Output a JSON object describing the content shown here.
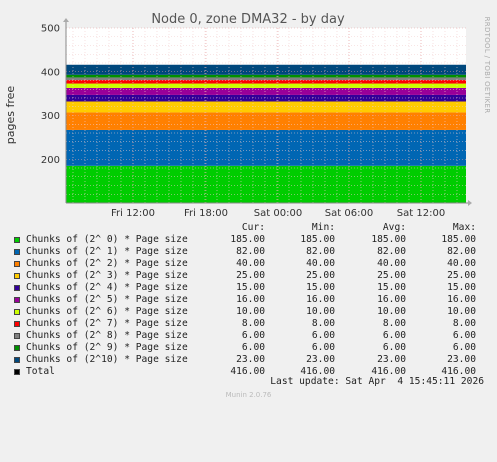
{
  "chart_data": {
    "type": "area",
    "stacked": true,
    "title": "Node 0, zone DMA32 - by day",
    "ylabel": "pages free",
    "ylim": [
      100,
      500
    ],
    "yticks": [
      200,
      300,
      400,
      500
    ],
    "xticks": [
      "Fri 12:00",
      "Fri 18:00",
      "Sat 00:00",
      "Sat 06:00",
      "Sat 12:00"
    ],
    "grid": true,
    "columns": [
      "Cur:",
      "Min:",
      "Avg:",
      "Max:"
    ],
    "series": [
      {
        "name": "Chunks of (2^ 0) * Page size",
        "color": "#00cc00",
        "cur": "185.00",
        "min": "185.00",
        "avg": "185.00",
        "max": "185.00",
        "value": 185
      },
      {
        "name": "Chunks of (2^ 1) * Page size",
        "color": "#0066b3",
        "cur": "82.00",
        "min": "82.00",
        "avg": "82.00",
        "max": "82.00",
        "value": 82
      },
      {
        "name": "Chunks of (2^ 2) * Page size",
        "color": "#ff8000",
        "cur": "40.00",
        "min": "40.00",
        "avg": "40.00",
        "max": "40.00",
        "value": 40
      },
      {
        "name": "Chunks of (2^ 3) * Page size",
        "color": "#ffcc00",
        "cur": "25.00",
        "min": "25.00",
        "avg": "25.00",
        "max": "25.00",
        "value": 25
      },
      {
        "name": "Chunks of (2^ 4) * Page size",
        "color": "#330099",
        "cur": "15.00",
        "min": "15.00",
        "avg": "15.00",
        "max": "15.00",
        "value": 15
      },
      {
        "name": "Chunks of (2^ 5) * Page size",
        "color": "#990099",
        "cur": "16.00",
        "min": "16.00",
        "avg": "16.00",
        "max": "16.00",
        "value": 16
      },
      {
        "name": "Chunks of (2^ 6) * Page size",
        "color": "#ccff00",
        "cur": "10.00",
        "min": "10.00",
        "avg": "10.00",
        "max": "10.00",
        "value": 10
      },
      {
        "name": "Chunks of (2^ 7) * Page size",
        "color": "#ff0000",
        "cur": "8.00",
        "min": "8.00",
        "avg": "8.00",
        "max": "8.00",
        "value": 8
      },
      {
        "name": "Chunks of (2^ 8) * Page size",
        "color": "#808080",
        "cur": "6.00",
        "min": "6.00",
        "avg": "6.00",
        "max": "6.00",
        "value": 6
      },
      {
        "name": "Chunks of (2^ 9) * Page size",
        "color": "#008f00",
        "cur": "6.00",
        "min": "6.00",
        "avg": "6.00",
        "max": "6.00",
        "value": 6
      },
      {
        "name": "Chunks of (2^10) * Page size",
        "color": "#00487d",
        "cur": "23.00",
        "min": "23.00",
        "avg": "23.00",
        "max": "23.00",
        "value": 23
      }
    ],
    "total": {
      "name": "Total",
      "color": "#000000",
      "cur": "416.00",
      "min": "416.00",
      "avg": "416.00",
      "max": "416.00"
    }
  },
  "watermark": "RRDTOOL / TOBI OETIKER",
  "last_update": "Last update: Sat Apr  4 15:45:11 2026",
  "munin_version": "Munin 2.0.76"
}
